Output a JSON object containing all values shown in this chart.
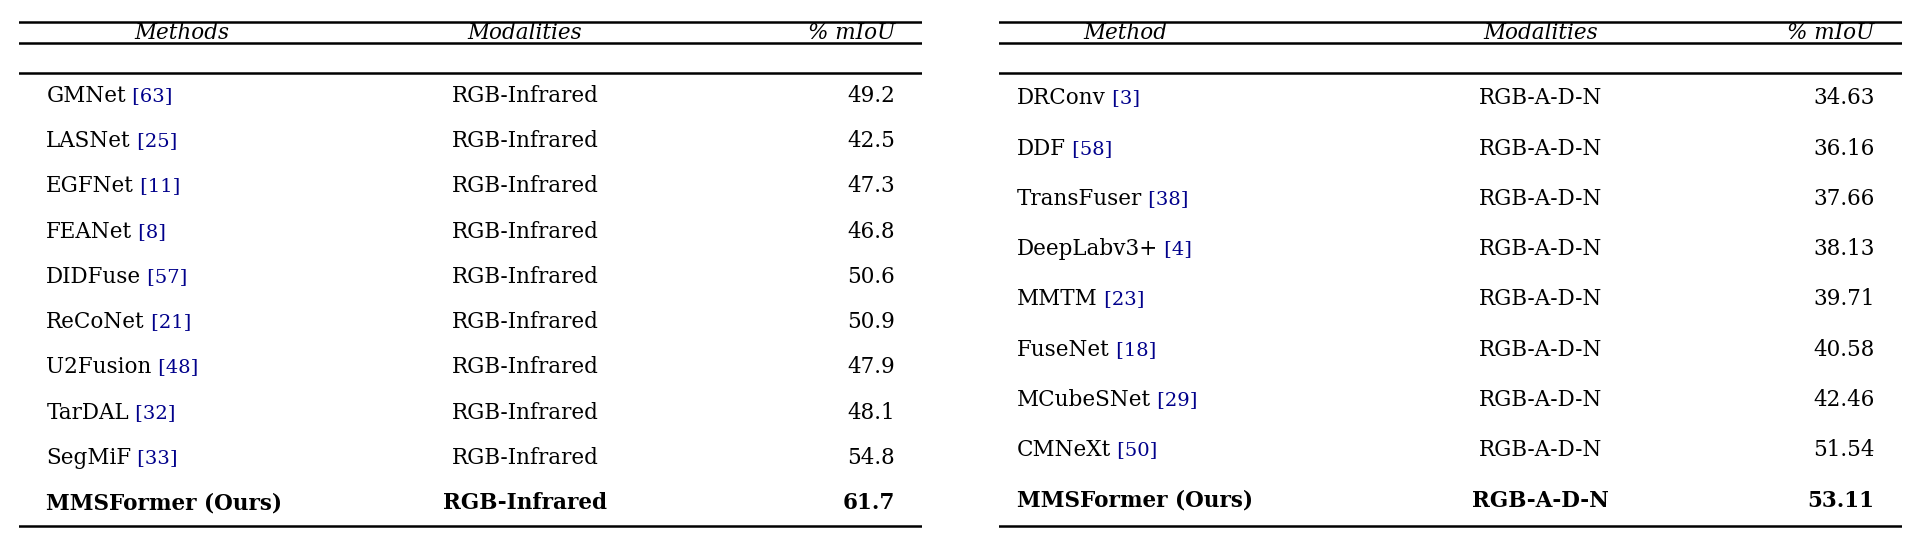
{
  "left_table": {
    "headers": [
      "Methods",
      "Modalities",
      "% mIoU"
    ],
    "rows": [
      {
        "method": "GMNet",
        "ref": "63",
        "modality": "RGB-Infrared",
        "miou": "49.2",
        "bold": false
      },
      {
        "method": "LASNet",
        "ref": "25",
        "modality": "RGB-Infrared",
        "miou": "42.5",
        "bold": false
      },
      {
        "method": "EGFNet",
        "ref": "11",
        "modality": "RGB-Infrared",
        "miou": "47.3",
        "bold": false
      },
      {
        "method": "FEANet",
        "ref": "8",
        "modality": "RGB-Infrared",
        "miou": "46.8",
        "bold": false
      },
      {
        "method": "DIDFuse",
        "ref": "57",
        "modality": "RGB-Infrared",
        "miou": "50.6",
        "bold": false
      },
      {
        "method": "ReCoNet",
        "ref": "21",
        "modality": "RGB-Infrared",
        "miou": "50.9",
        "bold": false
      },
      {
        "method": "U2Fusion",
        "ref": "48",
        "modality": "RGB-Infrared",
        "miou": "47.9",
        "bold": false
      },
      {
        "method": "TarDAL",
        "ref": "32",
        "modality": "RGB-Infrared",
        "miou": "48.1",
        "bold": false
      },
      {
        "method": "SegMiF",
        "ref": "33",
        "modality": "RGB-Infrared",
        "miou": "54.8",
        "bold": false
      },
      {
        "method": "MMSFormer (Ours)",
        "ref": "",
        "modality": "RGB-Infrared",
        "miou": "61.7",
        "bold": true
      }
    ]
  },
  "right_table": {
    "headers": [
      "Method",
      "Modalities",
      "% mIoU"
    ],
    "rows": [
      {
        "method": "DRConv",
        "ref": "3",
        "modality": "RGB-A-D-N",
        "miou": "34.63",
        "bold": false
      },
      {
        "method": "DDF",
        "ref": "58",
        "modality": "RGB-A-D-N",
        "miou": "36.16",
        "bold": false
      },
      {
        "method": "TransFuser",
        "ref": "38",
        "modality": "RGB-A-D-N",
        "miou": "37.66",
        "bold": false
      },
      {
        "method": "DeepLabv3+",
        "ref": "4",
        "modality": "RGB-A-D-N",
        "miou": "38.13",
        "bold": false
      },
      {
        "method": "MMTM",
        "ref": "23",
        "modality": "RGB-A-D-N",
        "miou": "39.71",
        "bold": false
      },
      {
        "method": "FuseNet",
        "ref": "18",
        "modality": "RGB-A-D-N",
        "miou": "40.58",
        "bold": false
      },
      {
        "method": "MCubeSNet",
        "ref": "29",
        "modality": "RGB-A-D-N",
        "miou": "42.46",
        "bold": false
      },
      {
        "method": "CMNeXt",
        "ref": "50",
        "modality": "RGB-A-D-N",
        "miou": "51.54",
        "bold": false
      },
      {
        "method": "MMSFormer (Ours)",
        "ref": "",
        "modality": "RGB-A-D-N",
        "miou": "53.11",
        "bold": true
      }
    ]
  },
  "bg_color": "#ffffff",
  "text_color": "#000000",
  "ref_color": "#00008B",
  "header_color": "#000000",
  "line_color": "#000000",
  "font_size": 15.5,
  "header_font_size": 15.5
}
